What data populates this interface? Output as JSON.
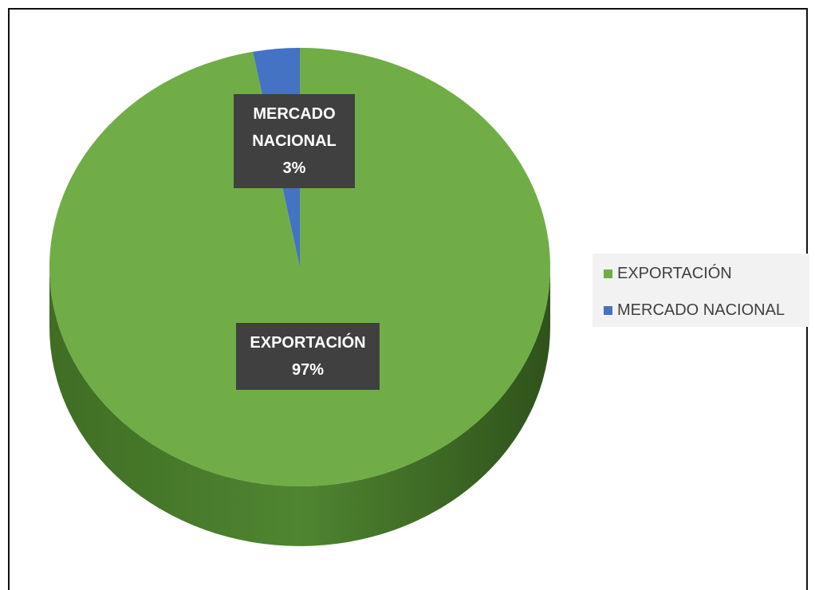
{
  "chart_data": {
    "type": "pie",
    "categories": [
      "EXPORTACIÓN",
      "MERCADO NACIONAL"
    ],
    "values": [
      97,
      3
    ],
    "value_labels": [
      "97%",
      "3%"
    ],
    "colors": [
      "#70ad47",
      "#4472c4"
    ],
    "legend": "right"
  }
}
